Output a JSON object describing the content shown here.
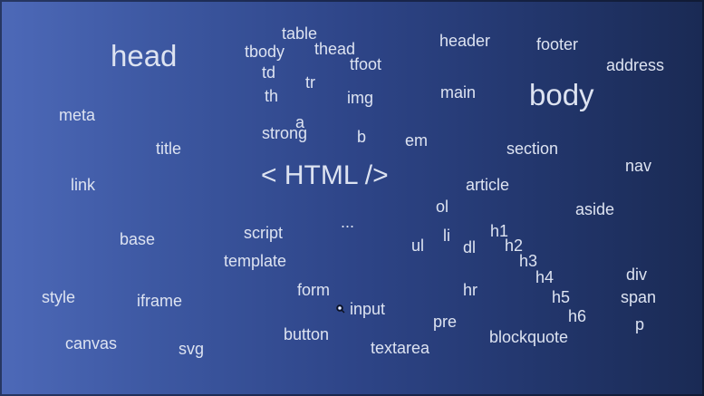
{
  "slide": {
    "title": "< HTML />",
    "words": {
      "head": "head",
      "body": "body",
      "table": "table",
      "tbody": "tbody",
      "thead": "thead",
      "tfoot": "tfoot",
      "td": "td",
      "tr": "tr",
      "th": "th",
      "img": "img",
      "header": "header",
      "footer": "footer",
      "address": "address",
      "main": "main",
      "meta": "meta",
      "a": "a",
      "strong": "strong",
      "b": "b",
      "em": "em",
      "section": "section",
      "title_tag": "title",
      "nav": "nav",
      "link": "link",
      "article": "article",
      "ol": "ol",
      "aside": "aside",
      "ellipsis": "...",
      "base": "base",
      "script": "script",
      "li": "li",
      "ul": "ul",
      "dl": "dl",
      "h1": "h1",
      "h2": "h2",
      "h3": "h3",
      "h4": "h4",
      "h5": "h5",
      "h6": "h6",
      "template": "template",
      "div": "div",
      "span": "span",
      "p": "p",
      "style": "style",
      "iframe": "iframe",
      "form": "form",
      "input": "input",
      "hr": "hr",
      "pre": "pre",
      "canvas": "canvas",
      "svg": "svg",
      "button": "button",
      "textarea": "textarea",
      "blockquote": "blockquote"
    }
  }
}
